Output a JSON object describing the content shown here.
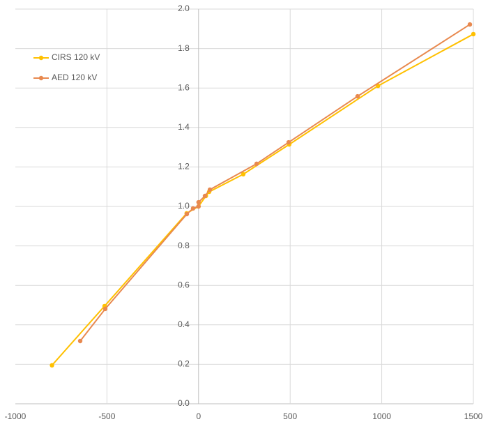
{
  "chart_data": {
    "type": "line",
    "xlim": [
      -1000,
      1500
    ],
    "xticks": [
      -1000,
      -500,
      0,
      500,
      1000,
      1500
    ],
    "ylim": [
      0,
      2.0
    ],
    "yticks": [
      {
        "value": 0,
        "label": "0.0"
      },
      {
        "value": 0.2,
        "label": "0.2"
      },
      {
        "value": 0.4,
        "label": "0.4"
      },
      {
        "value": 0.6,
        "label": "0.6"
      },
      {
        "value": 0.8,
        "label": "0.8"
      },
      {
        "value": 1.0,
        "label": "1.0"
      },
      {
        "value": 1.2,
        "label": "1.2"
      },
      {
        "value": 1.4,
        "label": "1.4"
      },
      {
        "value": 1.6,
        "label": "1.6"
      },
      {
        "value": 1.8,
        "label": "1.8"
      },
      {
        "value": 2.0,
        "label": "2.0"
      }
    ],
    "grid": true,
    "legend": "upper left",
    "series": [
      {
        "name": "CIRS 120 kV",
        "color": "#FFC000",
        "x": [
          -800,
          -513,
          -65,
          0,
          40,
          58,
          244,
          495,
          980,
          1500
        ],
        "values": [
          0.195,
          0.495,
          0.965,
          1.0,
          1.053,
          1.074,
          1.163,
          1.314,
          1.611,
          1.873
        ]
      },
      {
        "name": "AED 120 kV",
        "color": "#E8894F",
        "x": [
          -646,
          -509,
          -64,
          -30,
          0,
          0,
          35,
          62,
          317,
          492,
          868,
          1481
        ],
        "values": [
          0.318,
          0.481,
          0.961,
          0.99,
          1.0,
          1.021,
          1.053,
          1.085,
          1.216,
          1.325,
          1.558,
          1.922
        ]
      }
    ]
  }
}
